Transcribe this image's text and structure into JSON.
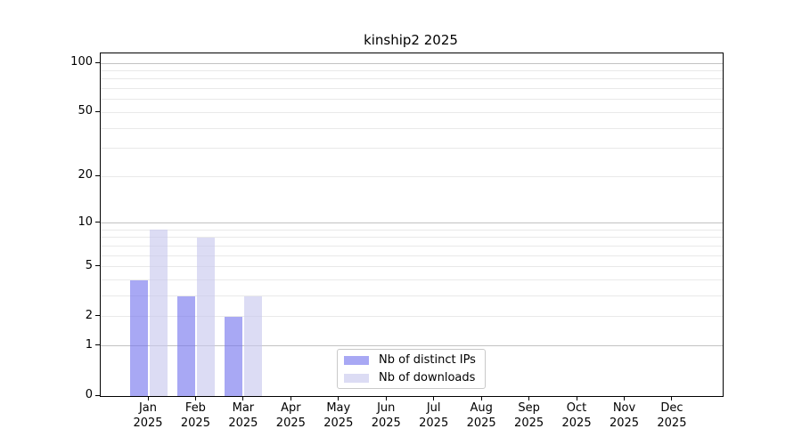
{
  "chart_data": {
    "type": "bar",
    "title": "kinship2 2025",
    "categories": [
      {
        "month": "Jan",
        "year": "2025"
      },
      {
        "month": "Feb",
        "year": "2025"
      },
      {
        "month": "Mar",
        "year": "2025"
      },
      {
        "month": "Apr",
        "year": "2025"
      },
      {
        "month": "May",
        "year": "2025"
      },
      {
        "month": "Jun",
        "year": "2025"
      },
      {
        "month": "Jul",
        "year": "2025"
      },
      {
        "month": "Aug",
        "year": "2025"
      },
      {
        "month": "Sep",
        "year": "2025"
      },
      {
        "month": "Oct",
        "year": "2025"
      },
      {
        "month": "Nov",
        "year": "2025"
      },
      {
        "month": "Dec",
        "year": "2025"
      }
    ],
    "series": [
      {
        "name": "Nb of distinct IPs",
        "color": "#7272ee",
        "values": [
          4,
          3,
          2,
          0,
          0,
          0,
          0,
          0,
          0,
          0,
          0,
          0
        ]
      },
      {
        "name": "Nb of downloads",
        "color": "#c6c6ee",
        "values": [
          9,
          8,
          3,
          0,
          0,
          0,
          0,
          0,
          0,
          0,
          0,
          0
        ]
      }
    ],
    "y_ticks": [
      0,
      1,
      2,
      5,
      10,
      20,
      50,
      100
    ],
    "y_minor_gridlines": [
      3,
      4,
      6,
      7,
      8,
      9,
      30,
      40,
      60,
      70,
      80,
      90
    ],
    "y_major_gridlines": [
      1,
      10,
      100
    ],
    "y_scale": "log1p",
    "ylim": [
      0,
      115
    ],
    "xlabel": "",
    "ylabel": "",
    "grid": true,
    "legend_position": "lower center",
    "background_color": "#ffffff",
    "axis_color": "#000000"
  }
}
